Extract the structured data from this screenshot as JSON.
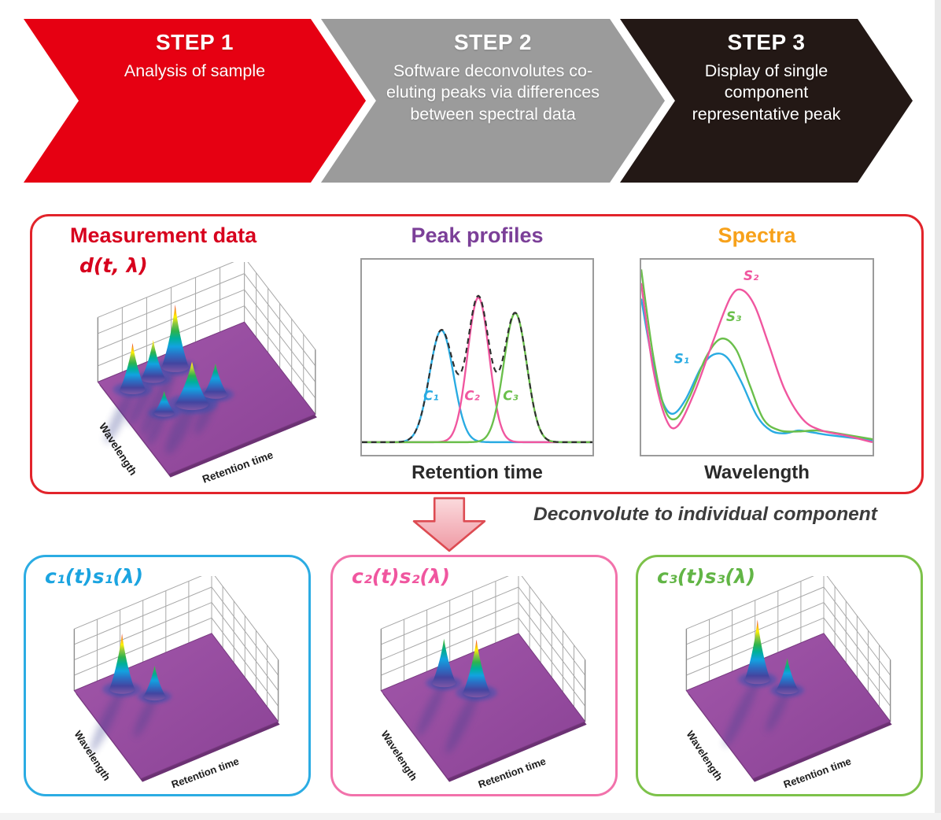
{
  "steps": [
    {
      "label": "STEP 1",
      "description": "Analysis of sample",
      "color": "#e60012"
    },
    {
      "label": "STEP 2",
      "description": "Software deconvolutes co-eluting peaks via differences between spectral data",
      "color": "#9b9b9b"
    },
    {
      "label": "STEP 3",
      "description": "Display of single component representative peak",
      "color": "#231815"
    }
  ],
  "overview": {
    "border_color": "#e2242b",
    "panels": {
      "measurement": {
        "title": "Measurement data",
        "title_color": "#d7001d",
        "formula": "d(t, λ)",
        "surface": {
          "peaks": [
            {
              "rt": 0.15,
              "wl": 0.82,
              "h": 0.72,
              "base": 16,
              "tier": "red"
            },
            {
              "rt": 0.3,
              "wl": 0.84,
              "h": 0.6,
              "base": 15,
              "tier": "orange"
            },
            {
              "rt": 0.46,
              "wl": 0.86,
              "h": 0.97,
              "base": 17,
              "tier": "red"
            },
            {
              "rt": 0.22,
              "wl": 0.52,
              "h": 0.34,
              "base": 13,
              "tier": "green"
            },
            {
              "rt": 0.4,
              "wl": 0.5,
              "h": 0.66,
              "base": 21,
              "tier": "orange"
            },
            {
              "rt": 0.56,
              "wl": 0.5,
              "h": 0.48,
              "base": 15,
              "tier": "green"
            }
          ]
        }
      },
      "peaks": {
        "title": "Peak profiles",
        "title_color": "#7b3f98",
        "xlabel": "Retention time",
        "envelope": {
          "color": "#2f2f2f",
          "style": "dashed",
          "meaning": "sum of component peaks"
        },
        "series": [
          {
            "name": "C₁",
            "color": "#29abe2",
            "center": 0.345,
            "sigma": 0.052,
            "height": 0.72,
            "label_x": 0.3,
            "label_y": 0.72
          },
          {
            "name": "C₂",
            "color": "#f0569f",
            "center": 0.505,
            "sigma": 0.047,
            "height": 0.93,
            "label_x": 0.478,
            "label_y": 0.72
          },
          {
            "name": "C₃",
            "color": "#6abf4b",
            "center": 0.665,
            "sigma": 0.05,
            "height": 0.83,
            "label_x": 0.645,
            "label_y": 0.72
          }
        ]
      },
      "spectra": {
        "title": "Spectra",
        "title_color": "#f7a11a",
        "xlabel": "Wavelength",
        "series": [
          {
            "name": "S₁",
            "color": "#29abe2",
            "label_x": 0.175,
            "label_y": 0.53,
            "points": [
              [
                0,
                0.2
              ],
              [
                0.045,
                0.5
              ],
              [
                0.09,
                0.72
              ],
              [
                0.135,
                0.79
              ],
              [
                0.19,
                0.72
              ],
              [
                0.26,
                0.55
              ],
              [
                0.315,
                0.485
              ],
              [
                0.37,
                0.5
              ],
              [
                0.43,
                0.62
              ],
              [
                0.5,
                0.8
              ],
              [
                0.56,
                0.875
              ],
              [
                0.62,
                0.89
              ],
              [
                0.68,
                0.875
              ],
              [
                0.74,
                0.885
              ],
              [
                0.82,
                0.9
              ],
              [
                1,
                0.925
              ]
            ]
          },
          {
            "name": "S₃",
            "color": "#6abf4b",
            "label_x": 0.4,
            "label_y": 0.315,
            "points": [
              [
                0,
                0.05
              ],
              [
                0.05,
                0.48
              ],
              [
                0.1,
                0.76
              ],
              [
                0.15,
                0.815
              ],
              [
                0.21,
                0.7
              ],
              [
                0.28,
                0.5
              ],
              [
                0.345,
                0.405
              ],
              [
                0.41,
                0.46
              ],
              [
                0.47,
                0.645
              ],
              [
                0.53,
                0.82
              ],
              [
                0.6,
                0.875
              ],
              [
                0.68,
                0.88
              ],
              [
                0.76,
                0.875
              ],
              [
                0.85,
                0.89
              ],
              [
                1,
                0.92
              ]
            ]
          },
          {
            "name": "S₂",
            "color": "#f0569f",
            "label_x": 0.475,
            "label_y": 0.105,
            "points": [
              [
                0,
                0.12
              ],
              [
                0.05,
                0.55
              ],
              [
                0.105,
                0.81
              ],
              [
                0.155,
                0.855
              ],
              [
                0.23,
                0.68
              ],
              [
                0.31,
                0.42
              ],
              [
                0.385,
                0.195
              ],
              [
                0.435,
                0.155
              ],
              [
                0.49,
                0.235
              ],
              [
                0.55,
                0.43
              ],
              [
                0.62,
                0.665
              ],
              [
                0.7,
                0.82
              ],
              [
                0.78,
                0.875
              ],
              [
                0.88,
                0.9
              ],
              [
                1,
                0.935
              ]
            ]
          }
        ]
      }
    }
  },
  "deconvolution": {
    "caption": "Deconvolute to individual component",
    "arrow_fill_top": "#fbdadd",
    "arrow_fill_bottom": "#ef99a4",
    "arrow_border": "#dd4b52"
  },
  "surface_axes": {
    "xlabel": "Retention time",
    "ylabel": "Wavelength"
  },
  "surface_palette": {
    "floor": "#91489c",
    "low": "#4345a0",
    "mid": "#12a3e0",
    "high": "#2eb34d",
    "top": "#e8231f"
  },
  "components": [
    {
      "label": "c₁(t)s₁(λ)",
      "color": "#1ba4e0",
      "border_color": "#2bace3",
      "surface": {
        "peaks": [
          {
            "rt": 0.27,
            "wl": 0.84,
            "h": 0.9,
            "base": 16,
            "tier": "red"
          },
          {
            "rt": 0.42,
            "wl": 0.66,
            "h": 0.5,
            "base": 14,
            "tier": "green"
          }
        ]
      }
    },
    {
      "label": "c₂(t)s₂(λ)",
      "color": "#f0569f",
      "border_color": "#f272ab",
      "surface": {
        "peaks": [
          {
            "rt": 0.38,
            "wl": 0.84,
            "h": 0.72,
            "base": 15,
            "tier": "green"
          },
          {
            "rt": 0.52,
            "wl": 0.64,
            "h": 0.86,
            "base": 17,
            "tier": "red"
          }
        ]
      }
    },
    {
      "label": "c₃(t)s₃(λ)",
      "color": "#62b546",
      "border_color": "#7dc24a",
      "surface": {
        "peaks": [
          {
            "rt": 0.44,
            "wl": 0.84,
            "h": 0.97,
            "base": 16,
            "tier": "red"
          },
          {
            "rt": 0.56,
            "wl": 0.64,
            "h": 0.52,
            "base": 14,
            "tier": "green"
          }
        ]
      }
    }
  ]
}
